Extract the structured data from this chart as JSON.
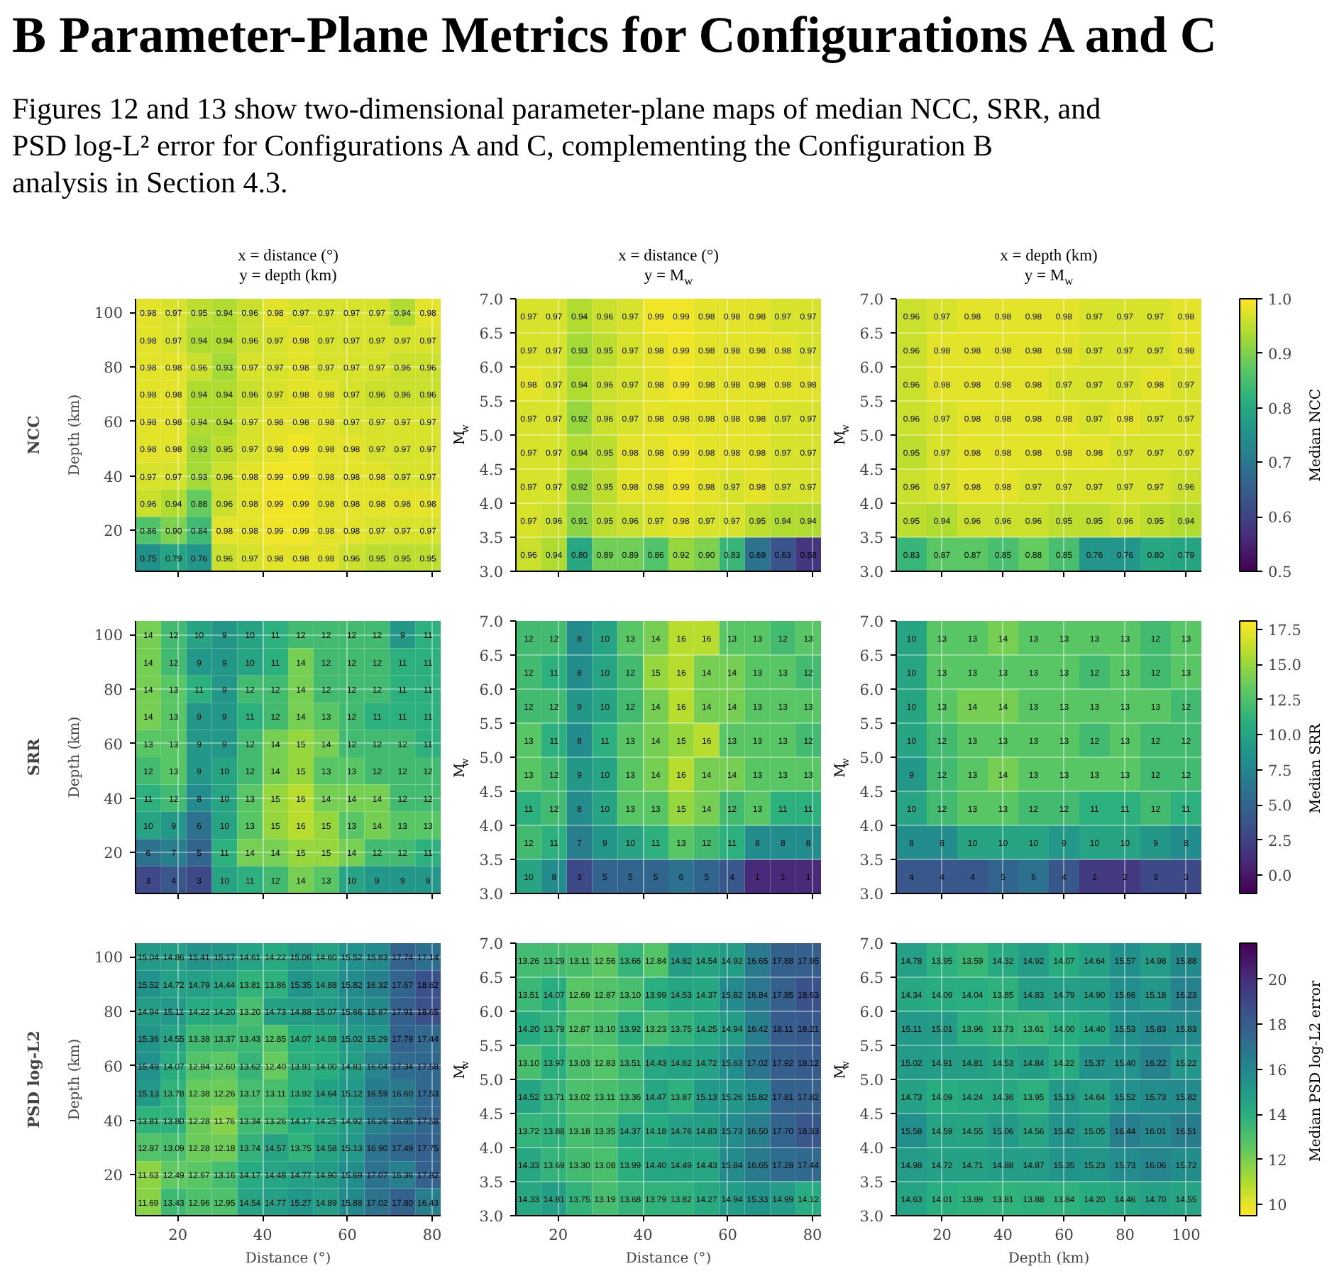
{
  "chart_data": [
    {
      "type": "other",
      "title": "B Parameter-Plane Metrics for Configurations A and C",
      "subtitle": "Figures 12 and 13 show two-dimensional parameter-plane maps of median NCC, SRR, and PSD log-L² error for Configurations A and C, complementing the Configuration B analysis in Section 4.3."
    },
    {
      "type": "heatmap",
      "title": "x = distance (°)",
      "subtitle": "y = depth (km)",
      "ylabel": "Depth (km)",
      "annotations": [
        "NCC"
      ],
      "x": [
        13,
        19,
        25,
        31,
        37,
        43,
        49,
        55,
        61,
        67,
        73,
        79
      ],
      "y": [
        100,
        90,
        80,
        70,
        60,
        50,
        40,
        30,
        20,
        10
      ],
      "xlim": [
        10,
        82
      ],
      "ylim": [
        5,
        105
      ],
      "xticks": [
        20,
        40,
        60,
        80
      ],
      "yticks": [
        20,
        40,
        60,
        80,
        100
      ],
      "tick_labels": "y",
      "grid": true,
      "cells": [
        [
          0.98,
          0.97,
          0.95,
          0.94,
          0.96,
          0.98,
          0.97,
          0.97,
          0.97,
          0.97,
          0.94,
          0.98
        ],
        [
          0.98,
          0.97,
          0.94,
          0.94,
          0.96,
          0.97,
          0.98,
          0.97,
          0.97,
          0.97,
          0.97,
          0.97
        ],
        [
          0.98,
          0.98,
          0.96,
          0.93,
          0.97,
          0.97,
          0.98,
          0.97,
          0.97,
          0.97,
          0.96,
          0.96
        ],
        [
          0.98,
          0.98,
          0.94,
          0.94,
          0.96,
          0.97,
          0.98,
          0.98,
          0.97,
          0.96,
          0.96,
          0.96
        ],
        [
          0.98,
          0.98,
          0.94,
          0.94,
          0.97,
          0.98,
          0.98,
          0.98,
          0.97,
          0.97,
          0.97,
          0.97
        ],
        [
          0.98,
          0.98,
          0.93,
          0.95,
          0.97,
          0.98,
          0.99,
          0.98,
          0.98,
          0.97,
          0.97,
          0.97
        ],
        [
          0.97,
          0.97,
          0.93,
          0.96,
          0.98,
          0.99,
          0.99,
          0.98,
          0.98,
          0.98,
          0.97,
          0.97
        ],
        [
          0.96,
          0.94,
          0.88,
          0.96,
          0.98,
          0.99,
          0.99,
          0.98,
          0.98,
          0.98,
          0.98,
          0.98
        ],
        [
          0.86,
          0.9,
          0.84,
          0.98,
          0.98,
          0.99,
          0.99,
          0.98,
          0.98,
          0.97,
          0.97,
          0.97
        ],
        [
          0.75,
          0.79,
          0.76,
          0.96,
          0.97,
          0.98,
          0.98,
          0.98,
          0.96,
          0.95,
          0.95,
          0.95
        ]
      ],
      "cell_labels": [
        [
          "0.98",
          "0.97",
          "0.95",
          "0.94",
          "0.96",
          "0.98",
          "0.97",
          "0.97",
          "0.97",
          "0.97",
          "0.94",
          "0.98"
        ],
        [
          "0.98",
          "0.97",
          "0.94",
          "0.94",
          "0.96",
          "0.97",
          "0.98",
          "0.97",
          "0.97",
          "0.97",
          "0.97",
          "0.97"
        ],
        [
          "0.98",
          "0.98",
          "0.96",
          "0.93",
          "0.97",
          "0.97",
          "0.98",
          "0.97",
          "0.97",
          "0.97",
          "0.96",
          "0.96"
        ],
        [
          "0.98",
          "0.98",
          "0.94",
          "0.94",
          "0.96",
          "0.97",
          "0.98",
          "0.98",
          "0.97",
          "0.96",
          "0.96",
          "0.96"
        ],
        [
          "0.98",
          "0.98",
          "0.94",
          "0.94",
          "0.97",
          "0.98",
          "0.98",
          "0.98",
          "0.97",
          "0.97",
          "0.97",
          "0.97"
        ],
        [
          "0.98",
          "0.98",
          "0.93",
          "0.95",
          "0.97",
          "0.98",
          "0.99",
          "0.98",
          "0.98",
          "0.97",
          "0.97",
          "0.97"
        ],
        [
          "0.97",
          "0.97",
          "0.93",
          "0.96",
          "0.98",
          "0.99",
          "0.99",
          "0.98",
          "0.98",
          "0.98",
          "0.97",
          "0.97"
        ],
        [
          "0.96",
          "0.94",
          "0.88",
          "0.96",
          "0.98",
          "0.99",
          "0.99",
          "0.98",
          "0.98",
          "0.98",
          "0.98",
          "0.98"
        ],
        [
          "0.86",
          "0.90",
          "0.84",
          "0.98",
          "0.98",
          "0.99",
          "0.99",
          "0.98",
          "0.98",
          "0.97",
          "0.97",
          "0.97"
        ],
        [
          "0.75",
          "0.79",
          "0.76",
          "0.96",
          "0.97",
          "0.98",
          "0.98",
          "0.98",
          "0.96",
          "0.95",
          "0.95",
          "0.95"
        ]
      ]
    },
    {
      "type": "heatmap",
      "title": "x = distance (°)",
      "subtitle": "y = M$_{w}$",
      "ylabel": "M$_{w}$",
      "x": [
        13,
        19,
        25,
        31,
        37,
        43,
        49,
        55,
        61,
        67,
        73,
        79
      ],
      "y": [
        6.75,
        6.25,
        5.75,
        5.25,
        4.75,
        4.25,
        3.75,
        3.25
      ],
      "xlim": [
        10,
        82
      ],
      "ylim": [
        3,
        7
      ],
      "xticks": [
        20,
        40,
        60,
        80
      ],
      "yticks": [
        {
          "value": 3,
          "label": "3.0"
        },
        3.5,
        {
          "value": 4,
          "label": "4.0"
        },
        4.5,
        {
          "value": 5,
          "label": "5.0"
        },
        5.5,
        {
          "value": 6,
          "label": "6.0"
        },
        6.5,
        {
          "value": 7,
          "label": "7.0"
        }
      ],
      "tick_labels": "y",
      "grid": true,
      "cells": [
        [
          0.97,
          0.97,
          0.94,
          0.96,
          0.97,
          0.99,
          0.99,
          0.98,
          0.98,
          0.98,
          0.97,
          0.97
        ],
        [
          0.97,
          0.97,
          0.93,
          0.95,
          0.97,
          0.98,
          0.99,
          0.98,
          0.98,
          0.98,
          0.98,
          0.97
        ],
        [
          0.98,
          0.97,
          0.94,
          0.96,
          0.97,
          0.98,
          0.99,
          0.98,
          0.98,
          0.98,
          0.98,
          0.98
        ],
        [
          0.97,
          0.97,
          0.92,
          0.96,
          0.97,
          0.98,
          0.98,
          0.98,
          0.98,
          0.98,
          0.97,
          0.97
        ],
        [
          0.97,
          0.97,
          0.94,
          0.95,
          0.98,
          0.98,
          0.99,
          0.98,
          0.98,
          0.98,
          0.97,
          0.97
        ],
        [
          0.97,
          0.97,
          0.92,
          0.95,
          0.98,
          0.98,
          0.99,
          0.98,
          0.97,
          0.98,
          0.97,
          0.97
        ],
        [
          0.97,
          0.96,
          0.91,
          0.95,
          0.96,
          0.97,
          0.98,
          0.97,
          0.97,
          0.95,
          0.94,
          0.94
        ],
        [
          0.96,
          0.94,
          0.8,
          0.89,
          0.89,
          0.86,
          0.92,
          0.9,
          0.83,
          0.69,
          0.63,
          0.58
        ]
      ],
      "cell_labels": [
        [
          "0.97",
          "0.97",
          "0.94",
          "0.96",
          "0.97",
          "0.99",
          "0.99",
          "0.98",
          "0.98",
          "0.98",
          "0.97",
          "0.97"
        ],
        [
          "0.97",
          "0.97",
          "0.93",
          "0.95",
          "0.97",
          "0.98",
          "0.99",
          "0.98",
          "0.98",
          "0.98",
          "0.98",
          "0.97"
        ],
        [
          "0.98",
          "0.97",
          "0.94",
          "0.96",
          "0.97",
          "0.98",
          "0.99",
          "0.98",
          "0.98",
          "0.98",
          "0.98",
          "0.98"
        ],
        [
          "0.97",
          "0.97",
          "0.92",
          "0.96",
          "0.97",
          "0.98",
          "0.98",
          "0.98",
          "0.98",
          "0.98",
          "0.97",
          "0.97"
        ],
        [
          "0.97",
          "0.97",
          "0.94",
          "0.95",
          "0.98",
          "0.98",
          "0.99",
          "0.98",
          "0.98",
          "0.98",
          "0.97",
          "0.97"
        ],
        [
          "0.97",
          "0.97",
          "0.92",
          "0.95",
          "0.98",
          "0.98",
          "0.99",
          "0.98",
          "0.97",
          "0.98",
          "0.97",
          "0.97"
        ],
        [
          "0.97",
          "0.96",
          "0.91",
          "0.95",
          "0.96",
          "0.97",
          "0.98",
          "0.97",
          "0.97",
          "0.95",
          "0.94",
          "0.94"
        ],
        [
          "0.96",
          "0.94",
          "0.80",
          "0.89",
          "0.89",
          "0.86",
          "0.92",
          "0.90",
          "0.83",
          "0.69",
          "0.63",
          "0.58"
        ]
      ]
    },
    {
      "type": "heatmap",
      "title": "x = depth (km)",
      "subtitle": "y = M$_{w}$",
      "ylabel": "M$_{w}$",
      "x": [
        10,
        20,
        30,
        40,
        50,
        60,
        70,
        80,
        90,
        100
      ],
      "y": [
        6.75,
        6.25,
        5.75,
        5.25,
        4.75,
        4.25,
        3.75,
        3.25
      ],
      "xlim": [
        5,
        105
      ],
      "ylim": [
        3,
        7
      ],
      "xticks": [
        20,
        40,
        60,
        80,
        100
      ],
      "yticks": [
        {
          "value": 3,
          "label": "3.0"
        },
        3.5,
        {
          "value": 4,
          "label": "4.0"
        },
        4.5,
        {
          "value": 5,
          "label": "5.0"
        },
        5.5,
        {
          "value": 6,
          "label": "6.0"
        },
        6.5,
        {
          "value": 7,
          "label": "7.0"
        }
      ],
      "tick_labels": "y",
      "grid": true,
      "clim": [
        0.5,
        1
      ],
      "cticks": [
        0.5,
        0.6,
        0.7,
        0.8,
        0.9,
        {
          "value": 1,
          "label": "1.0"
        }
      ],
      "clabel": "Median NCC",
      "colors": [
        "#440154",
        "#472d7b",
        "#3b528b",
        "#2c728e",
        "#21918c",
        "#28ae80",
        "#5ec962",
        "#addc30",
        "#fde725"
      ],
      "cells": [
        [
          0.96,
          0.97,
          0.98,
          0.98,
          0.98,
          0.98,
          0.97,
          0.97,
          0.97,
          0.98
        ],
        [
          0.96,
          0.98,
          0.98,
          0.98,
          0.98,
          0.98,
          0.97,
          0.97,
          0.97,
          0.98
        ],
        [
          0.96,
          0.98,
          0.98,
          0.98,
          0.98,
          0.97,
          0.97,
          0.97,
          0.98,
          0.97
        ],
        [
          0.96,
          0.97,
          0.98,
          0.98,
          0.98,
          0.98,
          0.97,
          0.98,
          0.97,
          0.97
        ],
        [
          0.95,
          0.97,
          0.98,
          0.98,
          0.98,
          0.98,
          0.98,
          0.97,
          0.97,
          0.97
        ],
        [
          0.96,
          0.97,
          0.98,
          0.98,
          0.97,
          0.97,
          0.97,
          0.97,
          0.97,
          0.96
        ],
        [
          0.95,
          0.94,
          0.96,
          0.96,
          0.96,
          0.95,
          0.95,
          0.96,
          0.95,
          0.94
        ],
        [
          0.83,
          0.87,
          0.87,
          0.85,
          0.88,
          0.85,
          0.76,
          0.76,
          0.8,
          0.79
        ]
      ],
      "cell_labels": [
        [
          "0.96",
          "0.97",
          "0.98",
          "0.98",
          "0.98",
          "0.98",
          "0.97",
          "0.97",
          "0.97",
          "0.98"
        ],
        [
          "0.96",
          "0.98",
          "0.98",
          "0.98",
          "0.98",
          "0.98",
          "0.97",
          "0.97",
          "0.97",
          "0.98"
        ],
        [
          "0.96",
          "0.98",
          "0.98",
          "0.98",
          "0.98",
          "0.97",
          "0.97",
          "0.97",
          "0.98",
          "0.97"
        ],
        [
          "0.96",
          "0.97",
          "0.98",
          "0.98",
          "0.98",
          "0.98",
          "0.97",
          "0.98",
          "0.97",
          "0.97"
        ],
        [
          "0.95",
          "0.97",
          "0.98",
          "0.98",
          "0.98",
          "0.98",
          "0.98",
          "0.97",
          "0.97",
          "0.97"
        ],
        [
          "0.96",
          "0.97",
          "0.98",
          "0.98",
          "0.97",
          "0.97",
          "0.97",
          "0.97",
          "0.97",
          "0.96"
        ],
        [
          "0.95",
          "0.94",
          "0.96",
          "0.96",
          "0.96",
          "0.95",
          "0.95",
          "0.96",
          "0.95",
          "0.94"
        ],
        [
          "0.83",
          "0.87",
          "0.87",
          "0.85",
          "0.88",
          "0.85",
          "0.76",
          "0.76",
          "0.80",
          "0.79"
        ]
      ]
    },
    {
      "type": "heatmap",
      "ylabel": "Depth (km)",
      "annotations": [
        "SRR"
      ],
      "x": [
        13,
        19,
        25,
        31,
        37,
        43,
        49,
        55,
        61,
        67,
        73,
        79
      ],
      "y": [
        100,
        90,
        80,
        70,
        60,
        50,
        40,
        30,
        20,
        10
      ],
      "xlim": [
        10,
        82
      ],
      "ylim": [
        5,
        105
      ],
      "xticks": [
        20,
        40,
        60,
        80
      ],
      "yticks": [
        20,
        40,
        60,
        80,
        100
      ],
      "tick_labels": "y",
      "grid": true,
      "data_labels": true,
      "cells": [
        [
          14,
          12,
          10,
          9,
          10,
          11,
          12,
          12,
          12,
          12,
          9,
          11
        ],
        [
          14,
          12,
          9,
          9,
          10,
          11,
          14,
          12,
          12,
          12,
          11,
          11
        ],
        [
          14,
          13,
          11,
          9,
          12,
          12,
          14,
          12,
          12,
          12,
          11,
          11
        ],
        [
          14,
          13,
          9,
          9,
          11,
          12,
          14,
          13,
          12,
          11,
          11,
          11
        ],
        [
          13,
          13,
          9,
          9,
          12,
          14,
          15,
          14,
          12,
          12,
          12,
          11
        ],
        [
          12,
          13,
          9,
          10,
          12,
          14,
          15,
          13,
          13,
          12,
          12,
          12
        ],
        [
          11,
          12,
          8,
          10,
          13,
          15,
          16,
          14,
          14,
          14,
          12,
          12
        ],
        [
          10,
          9,
          6,
          10,
          13,
          15,
          16,
          15,
          13,
          14,
          13,
          13
        ],
        [
          6,
          7,
          5,
          11,
          14,
          14,
          15,
          15,
          14,
          12,
          12,
          11
        ],
        [
          3,
          4,
          3,
          10,
          11,
          12,
          14,
          13,
          10,
          9,
          9,
          9
        ]
      ]
    },
    {
      "type": "heatmap",
      "ylabel": "M$_{w}$",
      "x": [
        13,
        19,
        25,
        31,
        37,
        43,
        49,
        55,
        61,
        67,
        73,
        79
      ],
      "y": [
        6.75,
        6.25,
        5.75,
        5.25,
        4.75,
        4.25,
        3.75,
        3.25
      ],
      "xlim": [
        10,
        82
      ],
      "ylim": [
        3,
        7
      ],
      "xticks": [
        20,
        40,
        60,
        80
      ],
      "yticks": [
        {
          "value": 3,
          "label": "3.0"
        },
        3.5,
        {
          "value": 4,
          "label": "4.0"
        },
        4.5,
        {
          "value": 5,
          "label": "5.0"
        },
        5.5,
        {
          "value": 6,
          "label": "6.0"
        },
        6.5,
        {
          "value": 7,
          "label": "7.0"
        }
      ],
      "tick_labels": "y",
      "grid": true,
      "data_labels": true,
      "cells": [
        [
          12,
          12,
          8,
          10,
          13,
          14,
          16,
          16,
          13,
          13,
          12,
          13
        ],
        [
          12,
          11,
          8,
          10,
          12,
          15,
          16,
          14,
          14,
          13,
          13,
          12
        ],
        [
          12,
          12,
          9,
          10,
          12,
          14,
          16,
          14,
          14,
          13,
          13,
          13
        ],
        [
          13,
          11,
          8,
          11,
          13,
          14,
          15,
          16,
          13,
          13,
          13,
          12
        ],
        [
          13,
          12,
          9,
          10,
          13,
          14,
          16,
          14,
          14,
          13,
          13,
          13
        ],
        [
          11,
          12,
          8,
          10,
          13,
          13,
          15,
          14,
          12,
          13,
          11,
          11
        ],
        [
          12,
          11,
          7,
          9,
          10,
          11,
          13,
          12,
          11,
          8,
          8,
          8
        ],
        [
          10,
          8,
          3,
          5,
          5,
          5,
          6,
          5,
          4,
          1,
          1,
          1
        ]
      ]
    },
    {
      "type": "heatmap",
      "ylabel": "M$_{w}$",
      "x": [
        10,
        20,
        30,
        40,
        50,
        60,
        70,
        80,
        90,
        100
      ],
      "y": [
        6.75,
        6.25,
        5.75,
        5.25,
        4.75,
        4.25,
        3.75,
        3.25
      ],
      "xlim": [
        5,
        105
      ],
      "ylim": [
        3,
        7
      ],
      "xticks": [
        20,
        40,
        60,
        80,
        100
      ],
      "yticks": [
        {
          "value": 3,
          "label": "3.0"
        },
        3.5,
        {
          "value": 4,
          "label": "4.0"
        },
        4.5,
        {
          "value": 5,
          "label": "5.0"
        },
        5.5,
        {
          "value": 6,
          "label": "6.0"
        },
        6.5,
        {
          "value": 7,
          "label": "7.0"
        }
      ],
      "tick_labels": "y",
      "grid": true,
      "data_labels": true,
      "clim": [
        -1.3,
        18.1
      ],
      "cticks": [
        {
          "value": 0,
          "label": "0.0"
        },
        2.5,
        {
          "value": 5,
          "label": "5.0"
        },
        7.5,
        {
          "value": 10,
          "label": "10.0"
        },
        12.5,
        {
          "value": 15,
          "label": "15.0"
        },
        17.5
      ],
      "clabel": "Median SRR",
      "colors": [
        "#440154",
        "#472d7b",
        "#3b528b",
        "#2c728e",
        "#21918c",
        "#28ae80",
        "#5ec962",
        "#addc30",
        "#fde725"
      ],
      "cells": [
        [
          10,
          13,
          13,
          14,
          13,
          13,
          13,
          13,
          12,
          13
        ],
        [
          10,
          13,
          13,
          13,
          13,
          13,
          12,
          13,
          12,
          13
        ],
        [
          10,
          13,
          14,
          14,
          13,
          13,
          13,
          13,
          13,
          12
        ],
        [
          10,
          12,
          13,
          13,
          13,
          13,
          12,
          13,
          12,
          12
        ],
        [
          9,
          12,
          13,
          14,
          13,
          13,
          13,
          13,
          12,
          12
        ],
        [
          10,
          12,
          13,
          13,
          12,
          12,
          11,
          11,
          12,
          11
        ],
        [
          8,
          8,
          10,
          10,
          10,
          9,
          10,
          10,
          9,
          8
        ],
        [
          4,
          4,
          4,
          5,
          6,
          4,
          2,
          2,
          3,
          3
        ]
      ]
    },
    {
      "type": "heatmap",
      "xlabel": "Distance (°)",
      "ylabel": "Depth (km)",
      "annotations": [
        "PSD log-L2"
      ],
      "x": [
        13,
        19,
        25,
        31,
        37,
        43,
        49,
        55,
        61,
        67,
        73,
        79
      ],
      "y": [
        100,
        90,
        80,
        70,
        60,
        50,
        40,
        30,
        20,
        10
      ],
      "xlim": [
        10,
        82
      ],
      "ylim": [
        5,
        105
      ],
      "xticks": [
        20,
        40,
        60,
        80
      ],
      "yticks": [
        20,
        40,
        60,
        80,
        100
      ],
      "grid": true,
      "cells": [
        [
          15.04,
          14.86,
          15.41,
          15.17,
          14.61,
          14.22,
          15.06,
          14.6,
          15.52,
          15.83,
          17.74,
          17.14
        ],
        [
          15.52,
          14.72,
          14.79,
          14.44,
          13.81,
          13.86,
          15.35,
          14.88,
          15.82,
          16.32,
          17.67,
          18.62
        ],
        [
          14.94,
          15.11,
          14.22,
          14.2,
          13.2,
          14.73,
          14.88,
          15.07,
          15.66,
          15.87,
          17.91,
          18.65
        ],
        [
          15.36,
          14.55,
          13.38,
          13.37,
          13.43,
          12.85,
          14.07,
          14.08,
          15.02,
          15.29,
          17.79,
          17.44
        ],
        [
          15.49,
          14.07,
          12.84,
          12.6,
          13.62,
          12.4,
          13.91,
          14.0,
          14.81,
          16.04,
          17.34,
          17.58
        ],
        [
          15.13,
          13.78,
          12.38,
          12.26,
          13.17,
          13.11,
          13.92,
          14.64,
          15.12,
          16.59,
          16.6,
          17.53
        ],
        [
          13.81,
          13.8,
          12.28,
          11.76,
          13.34,
          13.26,
          14.17,
          14.25,
          14.92,
          16.26,
          16.95,
          17.58
        ],
        [
          12.87,
          13.09,
          12.28,
          12.18,
          13.74,
          14.57,
          13.75,
          14.58,
          15.13,
          16.9,
          17.49,
          17.75
        ],
        [
          11.63,
          12.49,
          12.67,
          13.16,
          14.17,
          14.48,
          14.77,
          14.9,
          15.69,
          17.07,
          16.36,
          17.82
        ],
        [
          11.69,
          13.43,
          12.96,
          12.95,
          14.54,
          14.77,
          15.27,
          14.89,
          15.88,
          17.02,
          17.8,
          16.43
        ]
      ],
      "cell_labels": [
        [
          "15.04",
          "14.86",
          "15.41",
          "15.17",
          "14.61",
          "14.22",
          "15.06",
          "14.60",
          "15.52",
          "15.83",
          "17.74",
          "17.14"
        ],
        [
          "15.52",
          "14.72",
          "14.79",
          "14.44",
          "13.81",
          "13.86",
          "15.35",
          "14.88",
          "15.82",
          "16.32",
          "17.67",
          "18.62"
        ],
        [
          "14.94",
          "15.11",
          "14.22",
          "14.20",
          "13.20",
          "14.73",
          "14.88",
          "15.07",
          "15.66",
          "15.87",
          "17.91",
          "18.65"
        ],
        [
          "15.36",
          "14.55",
          "13.38",
          "13.37",
          "13.43",
          "12.85",
          "14.07",
          "14.08",
          "15.02",
          "15.29",
          "17.79",
          "17.44"
        ],
        [
          "15.49",
          "14.07",
          "12.84",
          "12.60",
          "13.62",
          "12.40",
          "13.91",
          "14.00",
          "14.81",
          "16.04",
          "17.34",
          "17.58"
        ],
        [
          "15.13",
          "13.78",
          "12.38",
          "12.26",
          "13.17",
          "13.11",
          "13.92",
          "14.64",
          "15.12",
          "16.59",
          "16.60",
          "17.53"
        ],
        [
          "13.81",
          "13.80",
          "12.28",
          "11.76",
          "13.34",
          "13.26",
          "14.17",
          "14.25",
          "14.92",
          "16.26",
          "16.95",
          "17.58"
        ],
        [
          "12.87",
          "13.09",
          "12.28",
          "12.18",
          "13.74",
          "14.57",
          "13.75",
          "14.58",
          "15.13",
          "16.90",
          "17.49",
          "17.75"
        ],
        [
          "11.63",
          "12.49",
          "12.67",
          "13.16",
          "14.17",
          "14.48",
          "14.77",
          "14.90",
          "15.69",
          "17.07",
          "16.36",
          "17.82"
        ],
        [
          "11.69",
          "13.43",
          "12.96",
          "12.95",
          "14.54",
          "14.77",
          "15.27",
          "14.89",
          "15.88",
          "17.02",
          "17.80",
          "16.43"
        ]
      ]
    },
    {
      "type": "heatmap",
      "xlabel": "Distance (°)",
      "ylabel": "M$_{w}$",
      "x": [
        13,
        19,
        25,
        31,
        37,
        43,
        49,
        55,
        61,
        67,
        73,
        79
      ],
      "y": [
        6.75,
        6.25,
        5.75,
        5.25,
        4.75,
        4.25,
        3.75,
        3.25
      ],
      "xlim": [
        10,
        82
      ],
      "ylim": [
        3,
        7
      ],
      "xticks": [
        20,
        40,
        60,
        80
      ],
      "yticks": [
        {
          "value": 3,
          "label": "3.0"
        },
        3.5,
        {
          "value": 4,
          "label": "4.0"
        },
        4.5,
        {
          "value": 5,
          "label": "5.0"
        },
        5.5,
        {
          "value": 6,
          "label": "6.0"
        },
        6.5,
        {
          "value": 7,
          "label": "7.0"
        }
      ],
      "grid": true,
      "cells": [
        [
          13.26,
          13.29,
          13.11,
          12.56,
          13.66,
          12.84,
          14.82,
          14.54,
          14.92,
          16.65,
          17.88,
          17.95
        ],
        [
          13.51,
          14.07,
          12.69,
          12.87,
          13.1,
          13.99,
          14.53,
          14.37,
          15.82,
          16.84,
          17.85,
          18.63
        ],
        [
          14.2,
          13.79,
          12.87,
          13.1,
          13.92,
          13.23,
          13.75,
          14.25,
          14.94,
          16.42,
          18.11,
          18.21
        ],
        [
          13.1,
          13.97,
          13.03,
          12.83,
          13.51,
          14.43,
          14.62,
          14.72,
          15.63,
          17.02,
          17.92,
          18.12
        ],
        [
          14.52,
          13.71,
          13.02,
          13.11,
          13.36,
          14.47,
          13.87,
          15.13,
          15.26,
          15.82,
          17.81,
          17.82
        ],
        [
          13.72,
          13.88,
          13.18,
          13.35,
          14.37,
          14.18,
          14.76,
          14.83,
          15.73,
          16.5,
          17.7,
          18.33
        ],
        [
          14.33,
          13.69,
          13.3,
          13.08,
          13.99,
          14.4,
          14.49,
          14.43,
          15.84,
          16.65,
          17.28,
          17.44
        ],
        [
          14.33,
          14.81,
          13.75,
          13.19,
          13.68,
          13.79,
          13.82,
          14.27,
          14.94,
          15.33,
          14.99,
          14.12
        ]
      ],
      "cell_labels": [
        [
          "13.26",
          "13.29",
          "13.11",
          "12.56",
          "13.66",
          "12.84",
          "14.82",
          "14.54",
          "14.92",
          "16.65",
          "17.88",
          "17.95"
        ],
        [
          "13.51",
          "14.07",
          "12.69",
          "12.87",
          "13.10",
          "13.99",
          "14.53",
          "14.37",
          "15.82",
          "16.84",
          "17.85",
          "18.63"
        ],
        [
          "14.20",
          "13.79",
          "12.87",
          "13.10",
          "13.92",
          "13.23",
          "13.75",
          "14.25",
          "14.94",
          "16.42",
          "18.11",
          "18.21"
        ],
        [
          "13.10",
          "13.97",
          "13.03",
          "12.83",
          "13.51",
          "14.43",
          "14.62",
          "14.72",
          "15.63",
          "17.02",
          "17.92",
          "18.12"
        ],
        [
          "14.52",
          "13.71",
          "13.02",
          "13.11",
          "13.36",
          "14.47",
          "13.87",
          "15.13",
          "15.26",
          "15.82",
          "17.81",
          "17.82"
        ],
        [
          "13.72",
          "13.88",
          "13.18",
          "13.35",
          "14.37",
          "14.18",
          "14.76",
          "14.83",
          "15.73",
          "16.50",
          "17.70",
          "18.33"
        ],
        [
          "14.33",
          "13.69",
          "13.30",
          "13.08",
          "13.99",
          "14.40",
          "14.49",
          "14.43",
          "15.84",
          "16.65",
          "17.28",
          "17.44"
        ],
        [
          "14.33",
          "14.81",
          "13.75",
          "13.19",
          "13.68",
          "13.79",
          "13.82",
          "14.27",
          "14.94",
          "15.33",
          "14.99",
          "14.12"
        ]
      ]
    },
    {
      "type": "heatmap",
      "xlabel": "Depth (km)",
      "ylabel": "M$_{w}$",
      "x": [
        10,
        20,
        30,
        40,
        50,
        60,
        70,
        80,
        90,
        100
      ],
      "y": [
        6.75,
        6.25,
        5.75,
        5.25,
        4.75,
        4.25,
        3.75,
        3.25
      ],
      "xlim": [
        5,
        105
      ],
      "ylim": [
        3,
        7
      ],
      "xticks": [
        20,
        40,
        60,
        80,
        100
      ],
      "yticks": [
        {
          "value": 3,
          "label": "3.0"
        },
        3.5,
        {
          "value": 4,
          "label": "4.0"
        },
        4.5,
        {
          "value": 5,
          "label": "5.0"
        },
        5.5,
        {
          "value": 6,
          "label": "6.0"
        },
        6.5,
        {
          "value": 7,
          "label": "7.0"
        }
      ],
      "grid": true,
      "clim": [
        9.5,
        21.6
      ],
      "cticks": [
        10,
        12,
        14,
        16,
        18,
        20
      ],
      "clabel": "Median PSD log-L2 error",
      "colors": [
        "#fde725",
        "#addc30",
        "#5ec962",
        "#28ae80",
        "#21918c",
        "#2c728e",
        "#3b528b",
        "#472d7b",
        "#440154"
      ],
      "cells": [
        [
          14.78,
          13.95,
          13.59,
          14.32,
          14.92,
          14.07,
          14.64,
          15.57,
          14.98,
          15.88
        ],
        [
          14.34,
          14.09,
          14.04,
          13.85,
          14.83,
          14.79,
          14.9,
          15.66,
          15.18,
          16.23
        ],
        [
          15.11,
          15.01,
          13.96,
          13.73,
          13.61,
          14.0,
          14.4,
          15.53,
          15.83,
          15.83
        ],
        [
          15.02,
          14.91,
          14.81,
          14.53,
          14.84,
          14.22,
          15.37,
          15.4,
          16.22,
          15.22
        ],
        [
          14.73,
          14.09,
          14.24,
          14.36,
          13.95,
          15.13,
          14.64,
          15.52,
          15.73,
          15.82
        ],
        [
          15.58,
          14.59,
          14.55,
          15.06,
          14.56,
          15.42,
          15.05,
          16.44,
          16.01,
          16.51
        ],
        [
          14.98,
          14.72,
          14.71,
          14.88,
          14.87,
          15.35,
          15.23,
          15.73,
          16.06,
          15.72
        ],
        [
          14.63,
          14.01,
          13.89,
          13.81,
          13.88,
          13.84,
          14.2,
          14.46,
          14.7,
          14.55
        ]
      ],
      "cell_labels": [
        [
          "14.78",
          "13.95",
          "13.59",
          "14.32",
          "14.92",
          "14.07",
          "14.64",
          "15.57",
          "14.98",
          "15.88"
        ],
        [
          "14.34",
          "14.09",
          "14.04",
          "13.85",
          "14.83",
          "14.79",
          "14.90",
          "15.66",
          "15.18",
          "16.23"
        ],
        [
          "15.11",
          "15.01",
          "13.96",
          "13.73",
          "13.61",
          "14.00",
          "14.40",
          "15.53",
          "15.83",
          "15.83"
        ],
        [
          "15.02",
          "14.91",
          "14.81",
          "14.53",
          "14.84",
          "14.22",
          "15.37",
          "15.40",
          "16.22",
          "15.22"
        ],
        [
          "14.73",
          "14.09",
          "14.24",
          "14.36",
          "13.95",
          "15.13",
          "14.64",
          "15.52",
          "15.73",
          "15.82"
        ],
        [
          "15.58",
          "14.59",
          "14.55",
          "15.06",
          "14.56",
          "15.42",
          "15.05",
          "16.44",
          "16.01",
          "16.51"
        ],
        [
          "14.98",
          "14.72",
          "14.71",
          "14.88",
          "14.87",
          "15.35",
          "15.23",
          "15.73",
          "16.06",
          "15.72"
        ],
        [
          "14.63",
          "14.01",
          "13.89",
          "13.81",
          "13.88",
          "13.84",
          "14.20",
          "14.46",
          "14.70",
          "14.55"
        ]
      ]
    }
  ]
}
